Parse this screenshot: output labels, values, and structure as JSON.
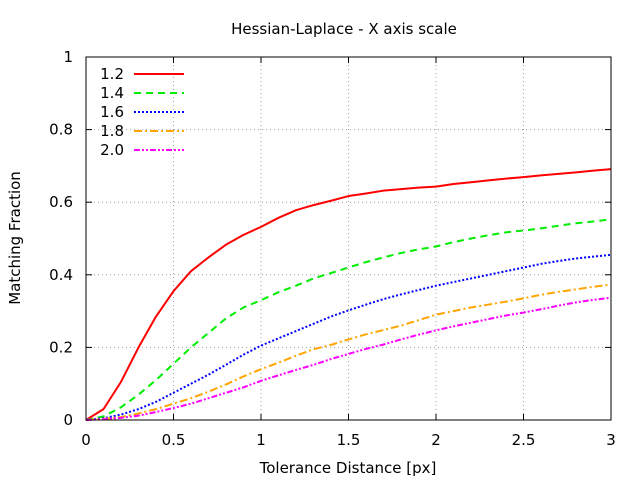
{
  "chart_data": {
    "type": "line",
    "title": "Hessian-Laplace - X axis scale",
    "xlabel": "Tolerance Distance [px]",
    "ylabel": "Matching Fraction",
    "xlim": [
      0,
      3
    ],
    "ylim": [
      0,
      1
    ],
    "xticks": [
      "0",
      "0.5",
      "1",
      "1.5",
      "2",
      "2.5",
      "3"
    ],
    "yticks": [
      "0",
      "0.2",
      "0.4",
      "0.6",
      "0.8",
      "1"
    ],
    "grid": true,
    "legend_position": "top-left",
    "series": [
      {
        "name": "1.2",
        "color": "#ff0000",
        "dash": "solid",
        "x": [
          0,
          0.1,
          0.2,
          0.3,
          0.4,
          0.5,
          0.6,
          0.7,
          0.8,
          0.9,
          1.0,
          1.1,
          1.2,
          1.3,
          1.4,
          1.5,
          1.6,
          1.7,
          1.8,
          1.9,
          2.0,
          2.1,
          2.2,
          2.3,
          2.4,
          2.5,
          2.6,
          2.7,
          2.8,
          2.9,
          3.0
        ],
        "y": [
          0,
          0.03,
          0.105,
          0.2,
          0.285,
          0.355,
          0.41,
          0.448,
          0.483,
          0.51,
          0.532,
          0.557,
          0.578,
          0.592,
          0.604,
          0.617,
          0.624,
          0.632,
          0.636,
          0.64,
          0.643,
          0.65,
          0.655,
          0.66,
          0.665,
          0.669,
          0.674,
          0.678,
          0.682,
          0.687,
          0.691
        ]
      },
      {
        "name": "1.4",
        "color": "#00ee00",
        "dash": "dashed",
        "x": [
          0,
          0.1,
          0.2,
          0.3,
          0.4,
          0.5,
          0.6,
          0.7,
          0.8,
          0.9,
          1.0,
          1.1,
          1.2,
          1.3,
          1.4,
          1.5,
          1.6,
          1.7,
          1.8,
          1.9,
          2.0,
          2.1,
          2.2,
          2.3,
          2.4,
          2.5,
          2.6,
          2.7,
          2.8,
          2.9,
          3.0
        ],
        "y": [
          0,
          0.01,
          0.035,
          0.07,
          0.11,
          0.155,
          0.2,
          0.24,
          0.28,
          0.31,
          0.33,
          0.352,
          0.37,
          0.39,
          0.405,
          0.42,
          0.435,
          0.448,
          0.46,
          0.47,
          0.478,
          0.49,
          0.5,
          0.509,
          0.517,
          0.522,
          0.528,
          0.535,
          0.542,
          0.547,
          0.553
        ]
      },
      {
        "name": "1.6",
        "color": "#0000ff",
        "dash": "dotted",
        "x": [
          0,
          0.1,
          0.2,
          0.3,
          0.4,
          0.5,
          0.6,
          0.7,
          0.8,
          0.9,
          1.0,
          1.1,
          1.2,
          1.3,
          1.4,
          1.5,
          1.6,
          1.7,
          1.8,
          1.9,
          2.0,
          2.1,
          2.2,
          2.3,
          2.4,
          2.5,
          2.6,
          2.7,
          2.8,
          2.9,
          3.0
        ],
        "y": [
          0,
          0.005,
          0.015,
          0.03,
          0.05,
          0.075,
          0.1,
          0.125,
          0.152,
          0.18,
          0.205,
          0.225,
          0.245,
          0.265,
          0.285,
          0.302,
          0.318,
          0.333,
          0.346,
          0.358,
          0.37,
          0.38,
          0.39,
          0.4,
          0.41,
          0.42,
          0.43,
          0.438,
          0.445,
          0.45,
          0.455
        ]
      },
      {
        "name": "1.8",
        "color": "#ffa500",
        "dash": "dashdot",
        "x": [
          0,
          0.1,
          0.2,
          0.3,
          0.4,
          0.5,
          0.6,
          0.7,
          0.8,
          0.9,
          1.0,
          1.1,
          1.2,
          1.3,
          1.4,
          1.5,
          1.6,
          1.7,
          1.8,
          1.9,
          2.0,
          2.1,
          2.2,
          2.3,
          2.4,
          2.5,
          2.6,
          2.7,
          2.8,
          2.9,
          3.0
        ],
        "y": [
          0,
          0.003,
          0.008,
          0.018,
          0.03,
          0.045,
          0.06,
          0.078,
          0.098,
          0.12,
          0.14,
          0.158,
          0.177,
          0.195,
          0.207,
          0.222,
          0.236,
          0.248,
          0.26,
          0.275,
          0.29,
          0.3,
          0.31,
          0.318,
          0.326,
          0.335,
          0.345,
          0.353,
          0.36,
          0.367,
          0.373
        ]
      },
      {
        "name": "2.0",
        "color": "#ff00ff",
        "dash": "dashdotdot",
        "x": [
          0,
          0.1,
          0.2,
          0.3,
          0.4,
          0.5,
          0.6,
          0.7,
          0.8,
          0.9,
          1.0,
          1.1,
          1.2,
          1.3,
          1.4,
          1.5,
          1.6,
          1.7,
          1.8,
          1.9,
          2.0,
          2.1,
          2.2,
          2.3,
          2.4,
          2.5,
          2.6,
          2.7,
          2.8,
          2.9,
          3.0
        ],
        "y": [
          0,
          0.002,
          0.006,
          0.012,
          0.022,
          0.033,
          0.045,
          0.06,
          0.075,
          0.09,
          0.108,
          0.123,
          0.138,
          0.152,
          0.168,
          0.182,
          0.196,
          0.208,
          0.222,
          0.235,
          0.247,
          0.258,
          0.268,
          0.278,
          0.288,
          0.296,
          0.305,
          0.315,
          0.324,
          0.331,
          0.337
        ]
      }
    ]
  }
}
